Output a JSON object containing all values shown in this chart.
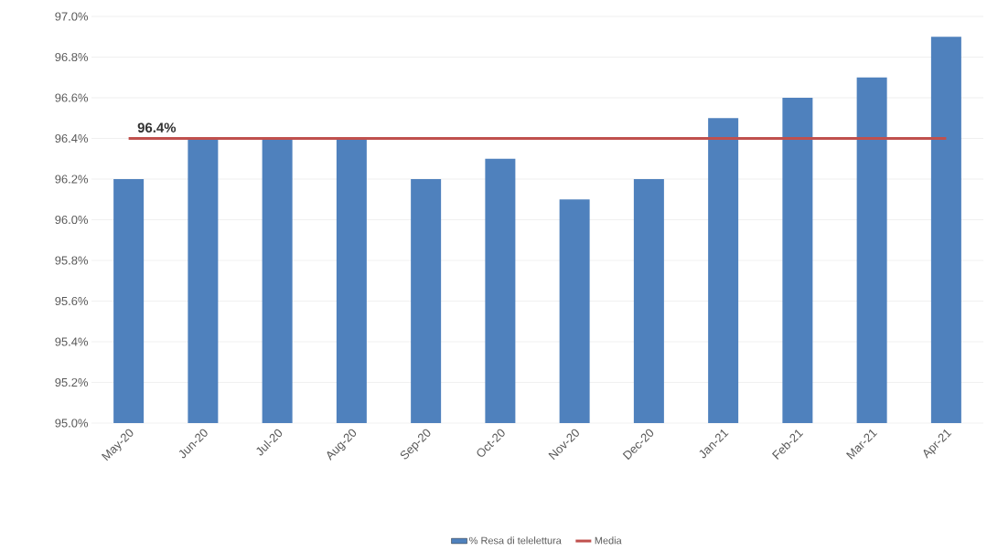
{
  "chart_data": {
    "type": "bar",
    "categories": [
      "May-20",
      "Jun-20",
      "Jul-20",
      "Aug-20",
      "Sep-20",
      "Oct-20",
      "Nov-20",
      "Dec-20",
      "Jan-21",
      "Feb-21",
      "Mar-21",
      "Apr-21"
    ],
    "series": [
      {
        "name": "% Resa di telelettura",
        "color": "#4f81bd",
        "values": [
          96.2,
          96.4,
          96.4,
          96.4,
          96.2,
          96.3,
          96.1,
          96.2,
          96.5,
          96.6,
          96.7,
          96.9
        ]
      },
      {
        "name": "Media",
        "type": "line",
        "color": "#c0504d",
        "values": [
          96.4,
          96.4,
          96.4,
          96.4,
          96.4,
          96.4,
          96.4,
          96.4,
          96.4,
          96.4,
          96.4,
          96.4
        ]
      }
    ],
    "ylim": [
      95,
      97
    ],
    "yticks": [
      {
        "value": 95,
        "label": "95.0%"
      },
      {
        "value": 95.2,
        "label": "95.2%"
      },
      {
        "value": 95.4,
        "label": "95.4%"
      },
      {
        "value": 95.6,
        "label": "95.6%"
      },
      {
        "value": 95.8,
        "label": "95.8%"
      },
      {
        "value": 96,
        "label": "96.0%"
      },
      {
        "value": 96.2,
        "label": "96.2%"
      },
      {
        "value": 96.4,
        "label": "96.4%"
      },
      {
        "value": 96.6,
        "label": "96.6%"
      },
      {
        "value": 96.8,
        "label": "96.8%"
      },
      {
        "value": 97,
        "label": "97.0%"
      }
    ],
    "grid": "y",
    "legend": "bottom",
    "annotations": [
      {
        "text": "96.4%",
        "x": "May-20",
        "y": 96.4
      }
    ]
  }
}
